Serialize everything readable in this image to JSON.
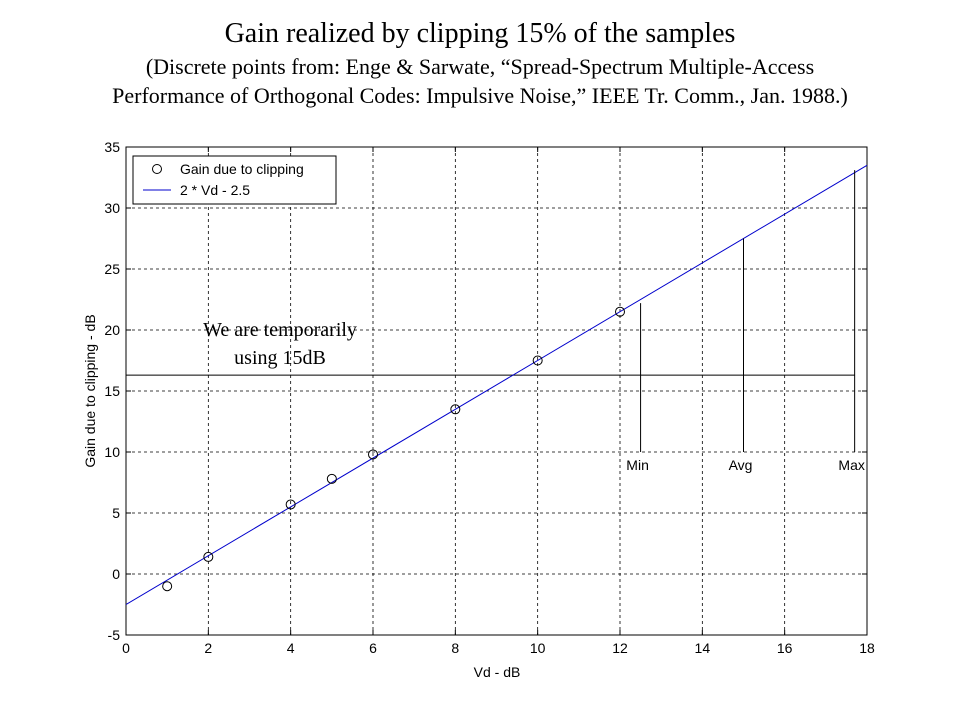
{
  "slide": {
    "title": "Gain realized by clipping 15% of the samples",
    "subtitle_line1": "(Discrete points from: Enge & Sarwate, “Spread-Spectrum Multiple-Access",
    "subtitle_line2": "Performance of Orthogonal Codes: Impulsive Noise,” IEEE Tr. Comm., Jan. 1988.)"
  },
  "chart_data": {
    "type": "scatter",
    "xlabel": "Vd - dB",
    "ylabel": "Gain due to clipping - dB",
    "xlim": [
      0,
      18
    ],
    "ylim": [
      -5,
      35
    ],
    "xticks": [
      "0",
      "2",
      "4",
      "6",
      "8",
      "10",
      "12",
      "14",
      "16",
      "18"
    ],
    "yticks": [
      "-5",
      "0",
      "5",
      "10",
      "15",
      "20",
      "25",
      "30",
      "35"
    ],
    "grid": true,
    "legend_position": "top-left",
    "series": [
      {
        "name": "Gain due to clipping",
        "kind": "points",
        "marker": "circle",
        "x": [
          1,
          2,
          4,
          5,
          6,
          8,
          10,
          12
        ],
        "y": [
          -1,
          1.4,
          5.7,
          7.8,
          9.8,
          13.5,
          17.5,
          21.5
        ]
      },
      {
        "name": "2 * Vd - 2.5",
        "kind": "line",
        "color": "#0000cc",
        "x": [
          0,
          18
        ],
        "y": [
          -2.5,
          33.5
        ]
      }
    ],
    "reference_line": {
      "y": 16.3,
      "x_range": [
        0,
        17.7
      ]
    },
    "markers": [
      {
        "label": "Min",
        "x": 12.5,
        "y_top": 22.2
      },
      {
        "label": "Avg",
        "x": 15,
        "y_top": 27.5
      },
      {
        "label": "Max",
        "x": 17.7,
        "y_top": 33.1
      }
    ],
    "annotation": {
      "line1": "We are temporarily",
      "line2": "using 15dB"
    }
  }
}
